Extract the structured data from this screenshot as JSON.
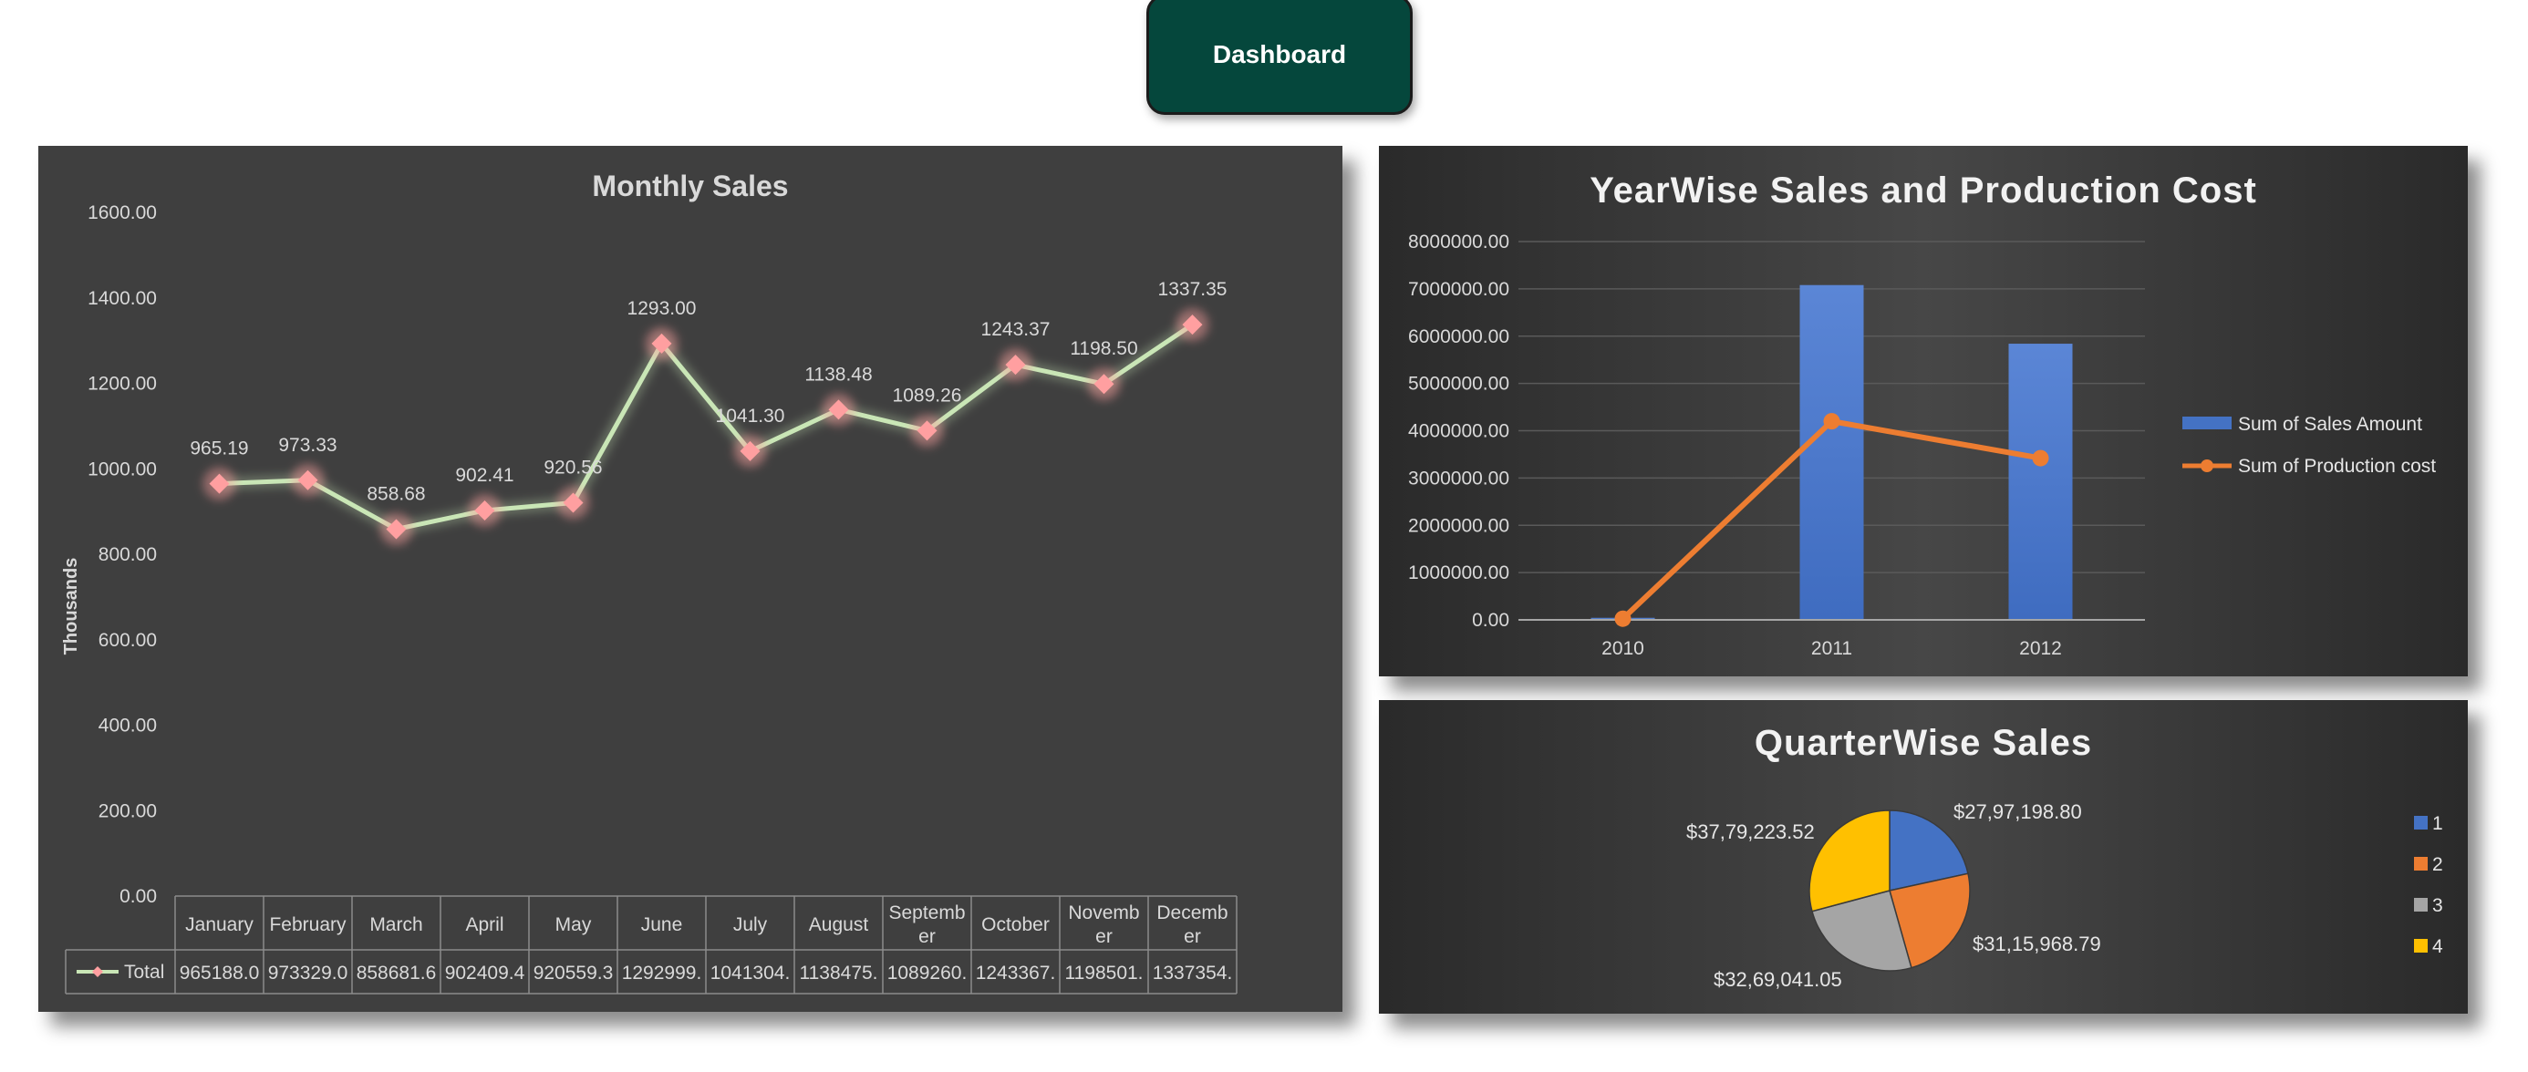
{
  "dashboard_button": {
    "label": "Dashboard"
  },
  "chart_data": [
    {
      "type": "line",
      "title": "Monthly Sales",
      "ylabel": "Thousands",
      "ylim": [
        0,
        1600
      ],
      "yticks": [
        "0.00",
        "200.00",
        "400.00",
        "600.00",
        "800.00",
        "1000.00",
        "1200.00",
        "1400.00",
        "1600.00"
      ],
      "categories": [
        "January",
        "February",
        "March",
        "April",
        "May",
        "June",
        "July",
        "August",
        "September",
        "October",
        "November",
        "December"
      ],
      "category_lines": [
        [
          "January"
        ],
        [
          "February"
        ],
        [
          "March"
        ],
        [
          "April"
        ],
        [
          "May"
        ],
        [
          "June"
        ],
        [
          "July"
        ],
        [
          "August"
        ],
        [
          "Septemb",
          "er"
        ],
        [
          "October"
        ],
        [
          "Novemb",
          "er"
        ],
        [
          "Decemb",
          "er"
        ]
      ],
      "series": [
        {
          "name": "Total",
          "color": "#c9e6b6",
          "marker_color": "#ff9fa0",
          "values": [
            965.19,
            973.33,
            858.68,
            902.41,
            920.56,
            1293.0,
            1041.3,
            1138.48,
            1089.26,
            1243.37,
            1198.5,
            1337.35
          ]
        }
      ],
      "data_labels": [
        "965.19",
        "973.33",
        "858.68",
        "902.41",
        "920.56",
        "1293.00",
        "1041.30",
        "1138.48",
        "1089.26",
        "1243.37",
        "1198.50",
        "1337.35"
      ],
      "data_table": {
        "row_label": "Total",
        "values": [
          "965188.0",
          "973329.0",
          "858681.6",
          "902409.4",
          "920559.3",
          "1292999.",
          "1041304.",
          "1138475.",
          "1089260.",
          "1243367.",
          "1198501.",
          "1337354."
        ]
      },
      "grid": false
    },
    {
      "type": "bar",
      "title": "YearWise Sales and Production Cost",
      "categories": [
        "2010",
        "2011",
        "2012"
      ],
      "ylim": [
        0,
        8000000
      ],
      "yticks": [
        "0.00",
        "1000000.00",
        "2000000.00",
        "3000000.00",
        "4000000.00",
        "5000000.00",
        "6000000.00",
        "7000000.00",
        "8000000.00"
      ],
      "series": [
        {
          "name": "Sum of Sales Amount",
          "type": "bar",
          "color": "#4472c4",
          "values": [
            43000,
            7080000,
            5840000
          ]
        },
        {
          "name": "Sum of Production cost",
          "type": "line",
          "color": "#ed7d31",
          "values": [
            25000,
            4200000,
            3420000
          ]
        }
      ],
      "grid": true,
      "legend": "right"
    },
    {
      "type": "pie",
      "title": "QuarterWise Sales",
      "categories": [
        "1",
        "2",
        "3",
        "4"
      ],
      "values": [
        2797198.8,
        3115968.79,
        3269041.05,
        3779223.52
      ],
      "labels": [
        "$27,97,198.80",
        "$31,15,968.79",
        "$32,69,041.05",
        "$37,79,223.52"
      ],
      "colors": [
        "#4472c4",
        "#ed7d31",
        "#a5a5a5",
        "#ffc000"
      ],
      "legend": "right"
    }
  ]
}
